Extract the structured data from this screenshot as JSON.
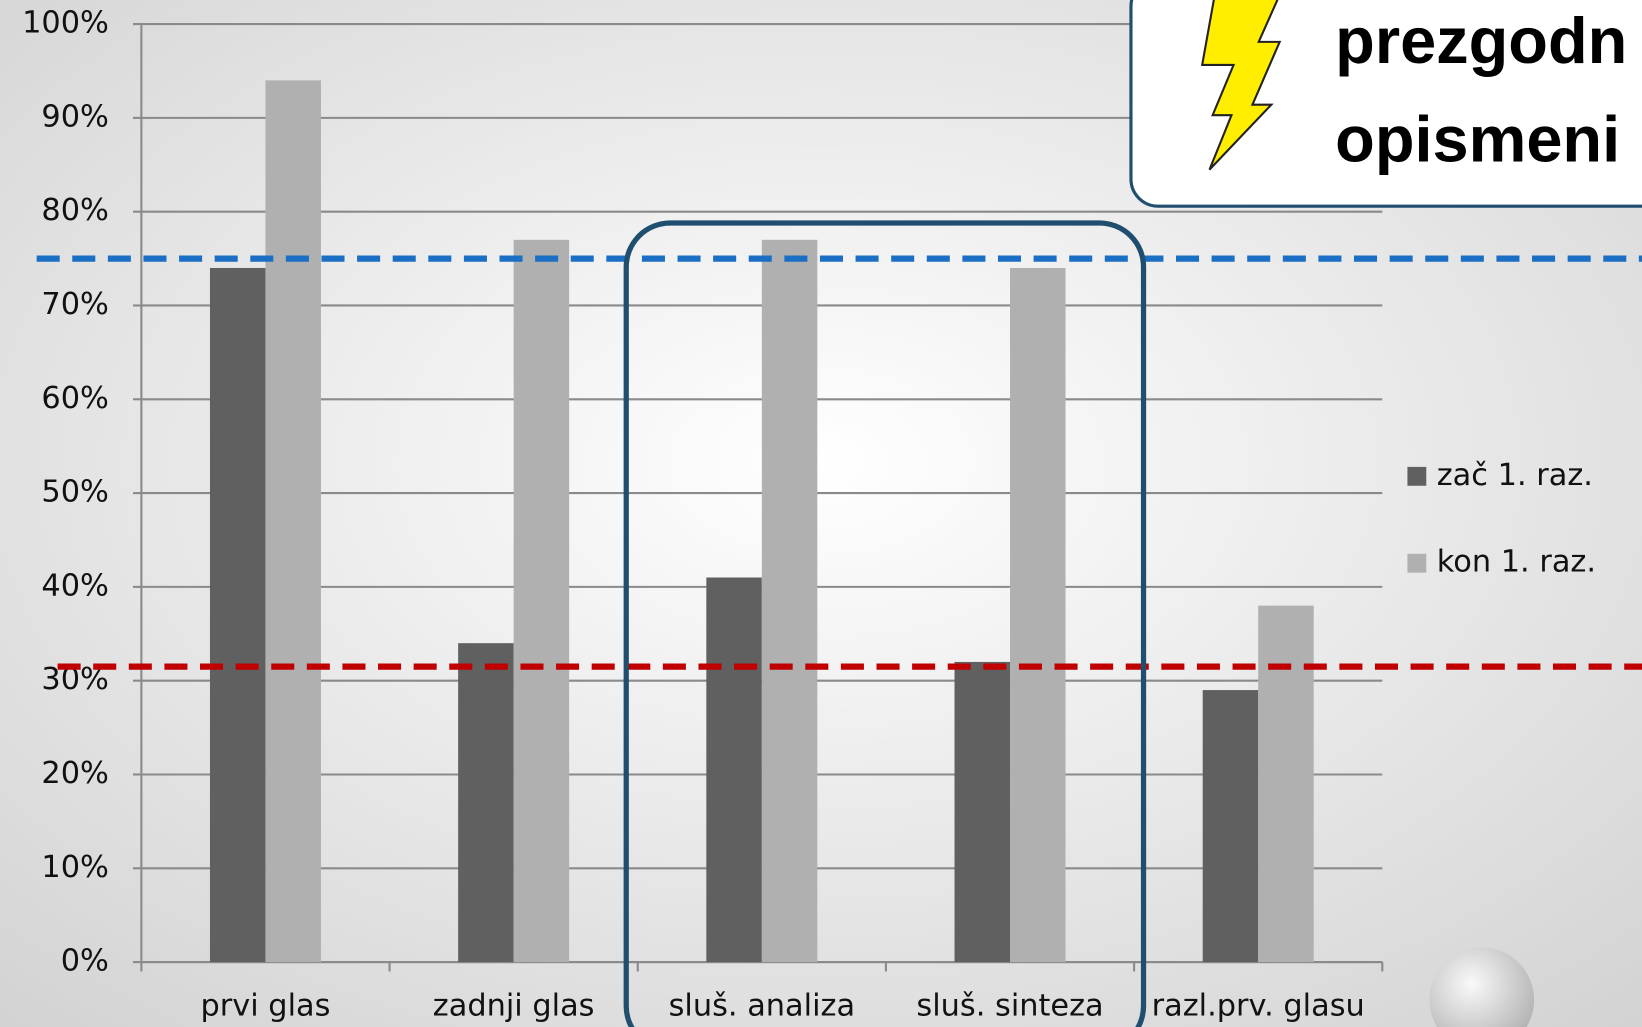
{
  "chart_data": {
    "type": "bar",
    "annotation": [
      "prezgodn",
      "opismeni"
    ],
    "categories": [
      "prvi glas",
      "zadnji glas",
      "sluš. analiza",
      "sluš. sinteza",
      "razl.prv. glasu"
    ],
    "series": [
      {
        "name": "zač 1. raz.",
        "color": "#606060",
        "values": [
          74,
          34,
          41,
          32,
          29
        ]
      },
      {
        "name": "kon 1. raz.",
        "color": "#b0b0b0",
        "values": [
          94,
          77,
          77,
          74,
          38
        ]
      }
    ],
    "ylim": [
      0,
      100
    ],
    "yticks": [
      {
        "value": 0,
        "label": "0%"
      },
      {
        "value": 10,
        "label": "10%"
      },
      {
        "value": 20,
        "label": "20%"
      },
      {
        "value": 30,
        "label": "30%"
      },
      {
        "value": 40,
        "label": "40%"
      },
      {
        "value": 50,
        "label": "50%"
      },
      {
        "value": 60,
        "label": "60%"
      },
      {
        "value": 70,
        "label": "70%"
      },
      {
        "value": 80,
        "label": "80%"
      },
      {
        "value": 90,
        "label": "90%"
      },
      {
        "value": 100,
        "label": "100%"
      }
    ],
    "grid": true,
    "reference_lines": [
      {
        "value": 75,
        "color": "#1a6fc4"
      },
      {
        "value": 31.5,
        "color": "#c00000"
      }
    ]
  }
}
